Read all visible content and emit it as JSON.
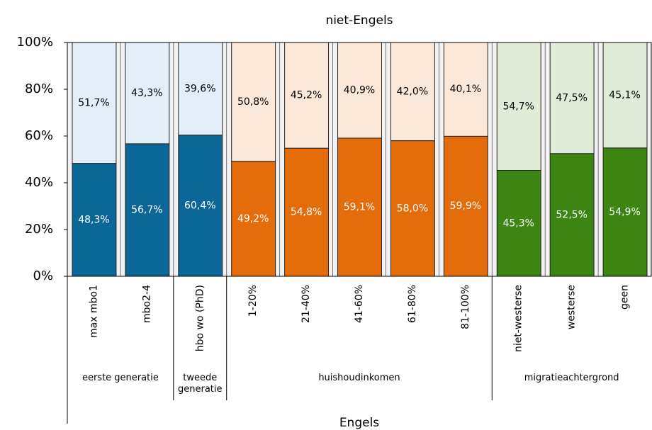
{
  "chart_data": {
    "type": "bar",
    "stacked": true,
    "series": [
      {
        "name": "Engels",
        "values": [
          48.3,
          56.7,
          60.4,
          49.2,
          54.8,
          59.1,
          58.0,
          59.9,
          45.3,
          52.5,
          54.9
        ],
        "value_labels": [
          "48,3%",
          "56,7%",
          "60,4%",
          "49,2%",
          "54,8%",
          "59,1%",
          "58,0%",
          "59,9%",
          "45,3%",
          "52,5%",
          "54,9%"
        ]
      },
      {
        "name": "niet-Engels",
        "values": [
          51.7,
          43.3,
          39.6,
          50.8,
          45.2,
          40.9,
          42.0,
          40.1,
          54.7,
          47.5,
          45.1
        ],
        "value_labels": [
          "51,7%",
          "43,3%",
          "39,6%",
          "50,8%",
          "45,2%",
          "40,9%",
          "42,0%",
          "40,1%",
          "54,7%",
          "47,5%",
          "45,1%"
        ]
      }
    ],
    "groups": [
      {
        "name": "eerste generatie",
        "categories": [
          "max mbo1",
          "mbo2-4"
        ],
        "colors": [
          "#0b6797",
          "#e3eef8"
        ]
      },
      {
        "name": "tweede generatie",
        "categories": [
          "hbo wo (PhD)"
        ],
        "colors": [
          "#0b6797",
          "#e3eef8"
        ]
      },
      {
        "name": "huishoudinkomen",
        "categories": [
          "1-20%",
          "21-40%",
          "41-60%",
          "61-80%",
          "81-100%"
        ],
        "colors": [
          "#e46c0a",
          "#fbe8d8"
        ]
      },
      {
        "name": "migratieachtergrond",
        "categories": [
          "niet-westerse",
          "westerse",
          "geen"
        ],
        "colors": [
          "#3c8513",
          "#e0ecd7"
        ]
      }
    ],
    "ylim": [
      0,
      100
    ],
    "yticks": [
      {
        "value": 0,
        "label": "0%"
      },
      {
        "value": 20,
        "label": "20%"
      },
      {
        "value": 40,
        "label": "40%"
      },
      {
        "value": 60,
        "label": "60%"
      },
      {
        "value": 80,
        "label": "80%"
      },
      {
        "value": 100,
        "label": "100%"
      }
    ]
  }
}
